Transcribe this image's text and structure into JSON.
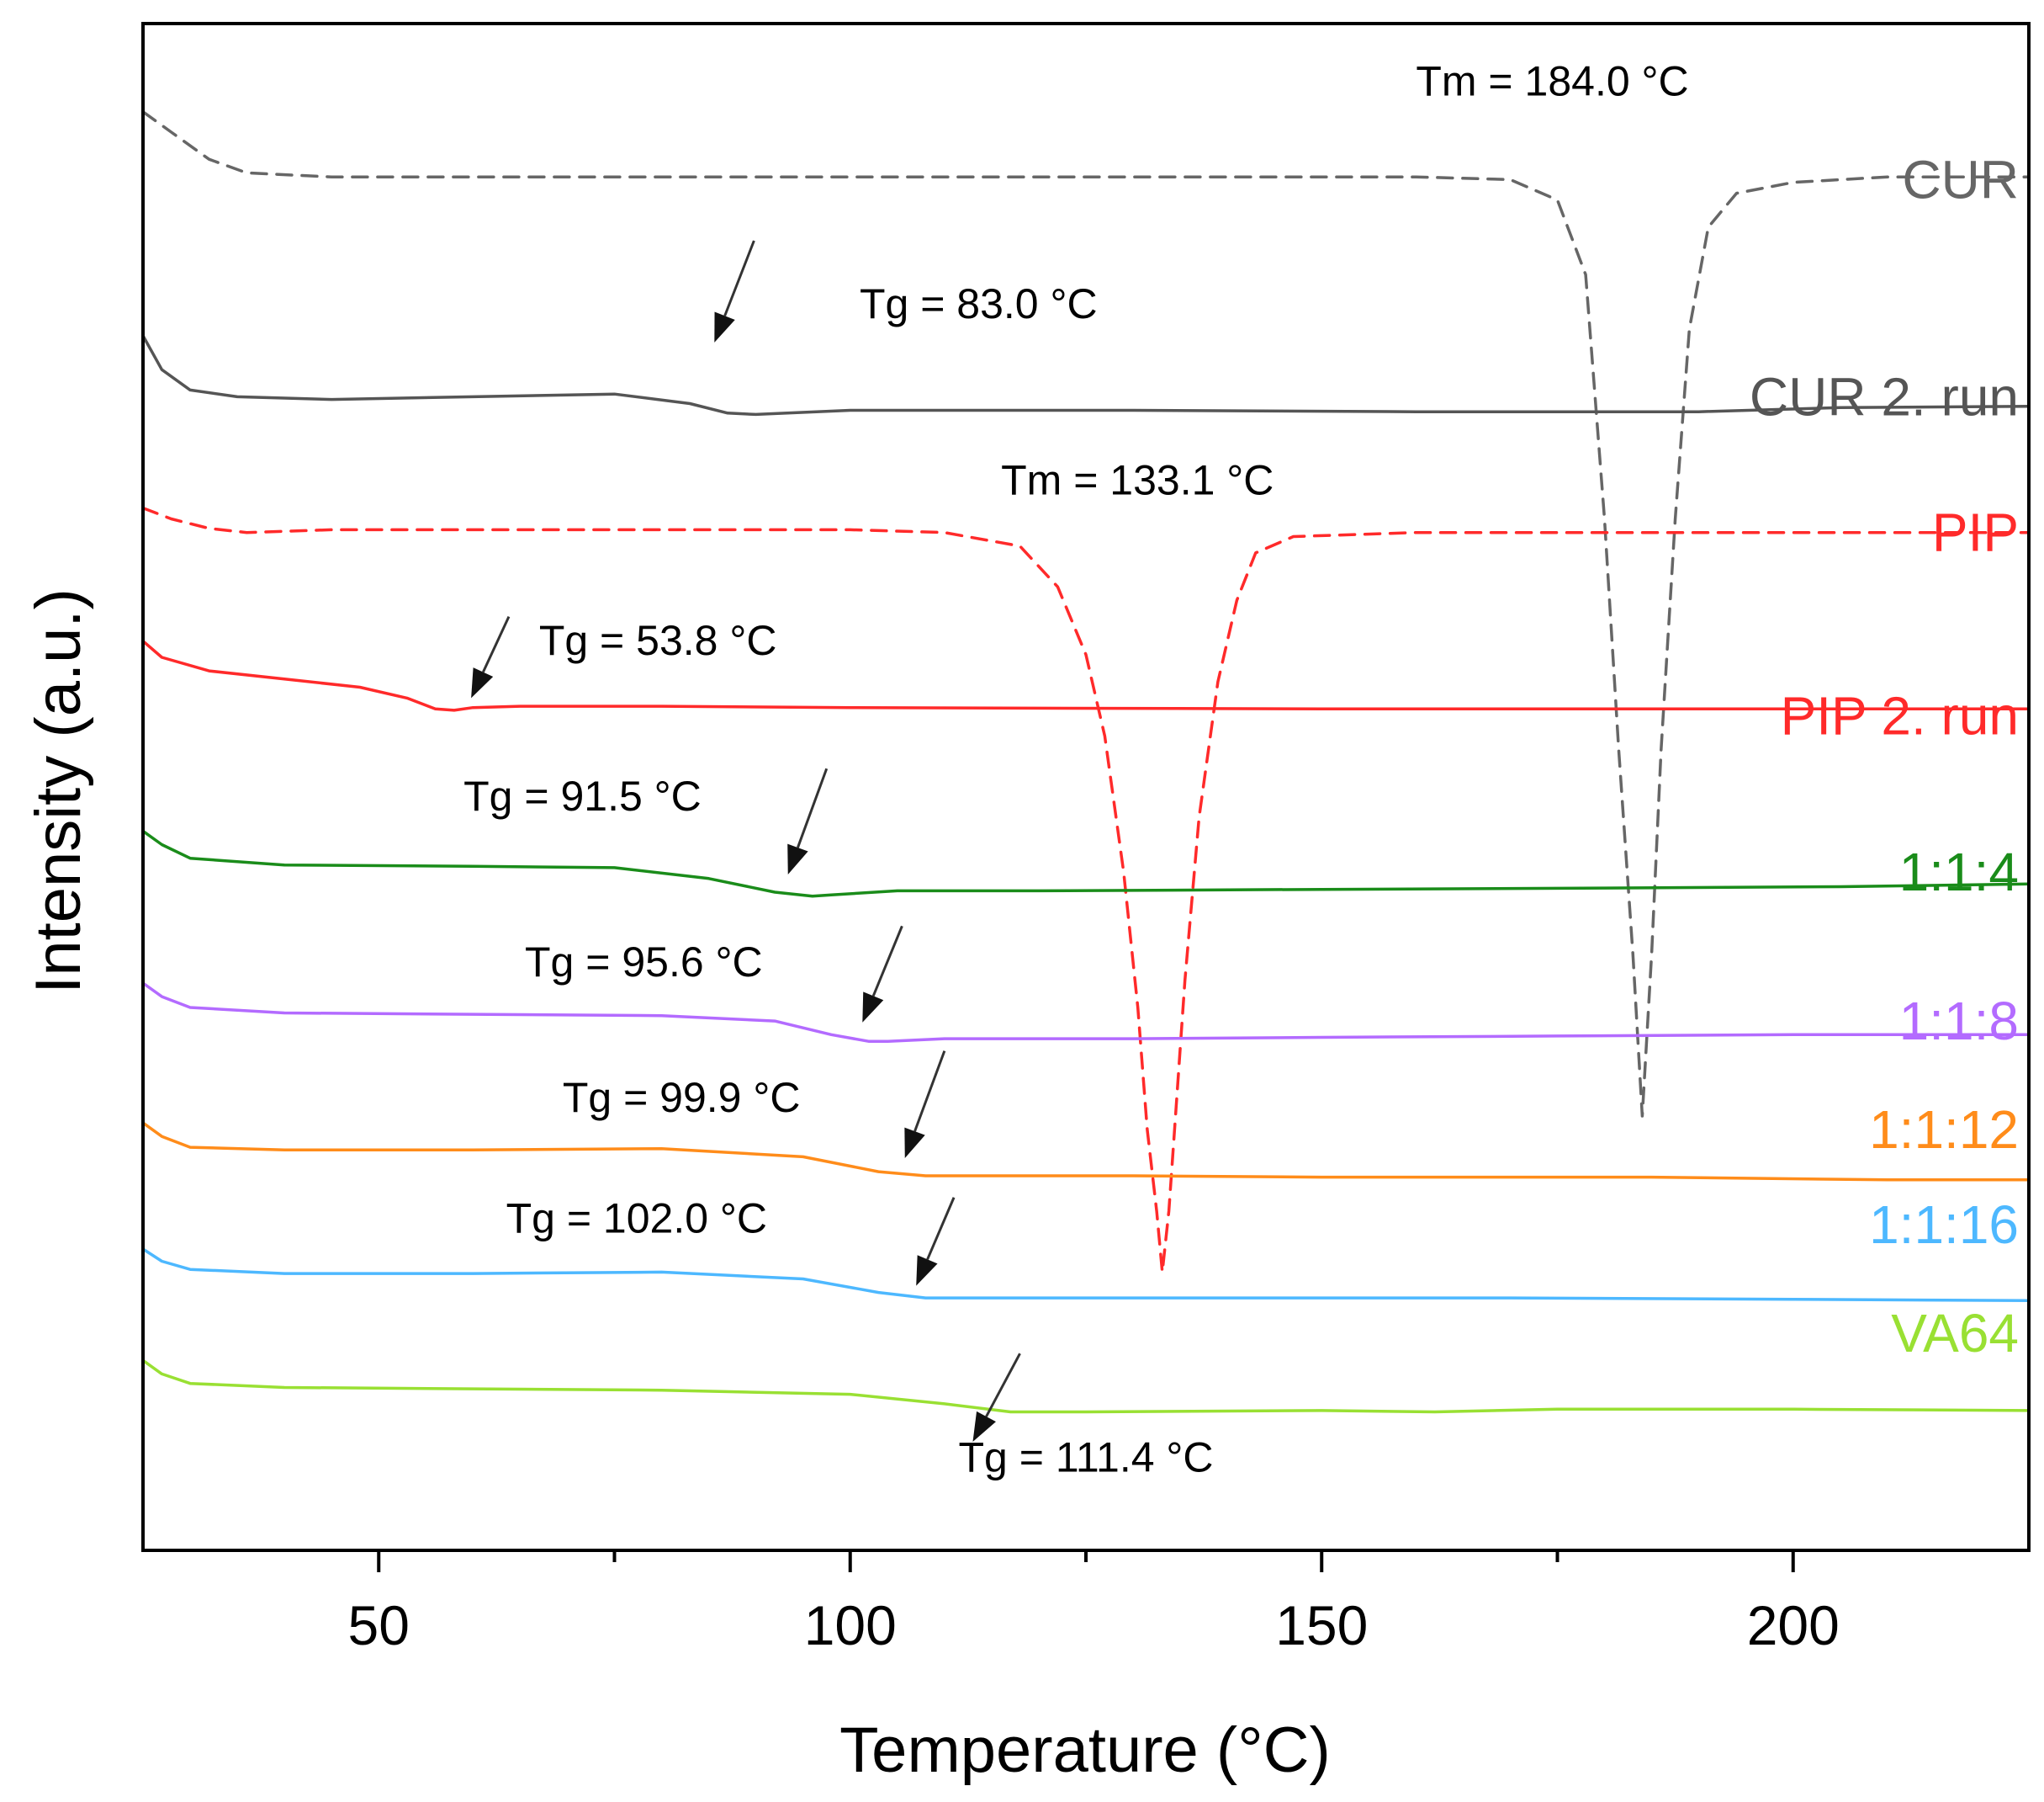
{
  "chart_data": {
    "type": "line",
    "xlabel": "Temperature (°C)",
    "ylabel": "Intensity (a.u.)",
    "xlim": [
      25,
      225
    ],
    "x_ticks": [
      50,
      100,
      150,
      200
    ],
    "x_tick_labels": [
      "50",
      "100",
      "150",
      "200"
    ],
    "x_minor_ticks": [
      75,
      125,
      175
    ],
    "yticks": "none",
    "series": [
      {
        "name": "CUR",
        "label": "CUR",
        "color": "#666666",
        "dashed": true,
        "offset": 8.7,
        "points": [
          [
            25,
            9.2
          ],
          [
            28,
            9.05
          ],
          [
            32,
            8.85
          ],
          [
            36,
            8.75
          ],
          [
            45,
            8.72
          ],
          [
            100,
            8.72
          ],
          [
            160,
            8.72
          ],
          [
            170,
            8.7
          ],
          [
            175,
            8.55
          ],
          [
            178,
            8.0
          ],
          [
            180,
            6.2
          ],
          [
            181.5,
            4.5
          ],
          [
            183,
            3.0
          ],
          [
            184,
            1.8
          ],
          [
            185,
            3.0
          ],
          [
            186,
            4.5
          ],
          [
            187.5,
            6.2
          ],
          [
            189,
            7.6
          ],
          [
            191,
            8.35
          ],
          [
            194,
            8.6
          ],
          [
            200,
            8.68
          ],
          [
            210,
            8.72
          ],
          [
            225,
            8.72
          ]
        ]
      },
      {
        "name": "CUR 2. run",
        "label": "CUR 2. run",
        "color": "#555555",
        "dashed": false,
        "offset": 7.1,
        "points": [
          [
            25,
            7.55
          ],
          [
            27,
            7.3
          ],
          [
            30,
            7.15
          ],
          [
            35,
            7.1
          ],
          [
            45,
            7.08
          ],
          [
            60,
            7.1
          ],
          [
            75,
            7.12
          ],
          [
            83,
            7.05
          ],
          [
            87,
            6.98
          ],
          [
            90,
            6.97
          ],
          [
            100,
            7.0
          ],
          [
            130,
            7.0
          ],
          [
            160,
            6.99
          ],
          [
            190,
            6.99
          ],
          [
            205,
            7.02
          ],
          [
            225,
            7.03
          ]
        ]
      },
      {
        "name": "PIP",
        "label": "PIP",
        "color": "#ff2a2a",
        "dashed": true,
        "offset": 6.1,
        "points": [
          [
            25,
            6.28
          ],
          [
            28,
            6.2
          ],
          [
            32,
            6.13
          ],
          [
            36,
            6.1
          ],
          [
            45,
            6.12
          ],
          [
            100,
            6.12
          ],
          [
            110,
            6.1
          ],
          [
            118,
            6.0
          ],
          [
            122,
            5.7
          ],
          [
            125,
            5.2
          ],
          [
            127,
            4.6
          ],
          [
            129,
            3.6
          ],
          [
            130.5,
            2.6
          ],
          [
            131.5,
            1.7
          ],
          [
            132.5,
            1.1
          ],
          [
            133.1,
            0.65
          ],
          [
            133.8,
            1.1
          ],
          [
            134.5,
            1.8
          ],
          [
            135.5,
            2.8
          ],
          [
            137,
            4.0
          ],
          [
            139,
            5.0
          ],
          [
            141,
            5.6
          ],
          [
            143,
            5.95
          ],
          [
            147,
            6.07
          ],
          [
            160,
            6.1
          ],
          [
            225,
            6.1
          ]
        ]
      },
      {
        "name": "PIP 2. run",
        "label": "PIP 2. run",
        "color": "#ff2a2a",
        "dashed": false,
        "offset": 4.75,
        "points": [
          [
            25,
            5.3
          ],
          [
            27,
            5.18
          ],
          [
            32,
            5.08
          ],
          [
            40,
            5.02
          ],
          [
            48,
            4.96
          ],
          [
            53,
            4.88
          ],
          [
            56,
            4.8
          ],
          [
            58,
            4.79
          ],
          [
            60,
            4.81
          ],
          [
            65,
            4.82
          ],
          [
            80,
            4.82
          ],
          [
            100,
            4.81
          ],
          [
            150,
            4.8
          ],
          [
            225,
            4.8
          ]
        ]
      },
      {
        "name": "1:1:4",
        "label": "1:1:4",
        "color": "#1a8c1a",
        "dashed": false,
        "offset": 3.6,
        "points": [
          [
            25,
            3.9
          ],
          [
            27,
            3.8
          ],
          [
            30,
            3.7
          ],
          [
            40,
            3.65
          ],
          [
            60,
            3.64
          ],
          [
            75,
            3.63
          ],
          [
            85,
            3.55
          ],
          [
            92,
            3.45
          ],
          [
            96,
            3.42
          ],
          [
            98,
            3.43
          ],
          [
            105,
            3.46
          ],
          [
            120,
            3.46
          ],
          [
            150,
            3.47
          ],
          [
            180,
            3.48
          ],
          [
            205,
            3.49
          ],
          [
            225,
            3.51
          ]
        ]
      },
      {
        "name": "1:1:8",
        "label": "1:1:8",
        "color": "#b36bff",
        "dashed": false,
        "offset": 2.5,
        "points": [
          [
            25,
            2.78
          ],
          [
            27,
            2.68
          ],
          [
            30,
            2.6
          ],
          [
            40,
            2.56
          ],
          [
            60,
            2.55
          ],
          [
            80,
            2.54
          ],
          [
            92,
            2.5
          ],
          [
            98,
            2.4
          ],
          [
            102,
            2.35
          ],
          [
            104,
            2.35
          ],
          [
            110,
            2.37
          ],
          [
            130,
            2.37
          ],
          [
            150,
            2.38
          ],
          [
            175,
            2.39
          ],
          [
            200,
            2.4
          ],
          [
            225,
            2.4
          ]
        ]
      },
      {
        "name": "1:1:12",
        "label": "1:1:12",
        "color": "#ff8c1a",
        "dashed": false,
        "offset": 1.7,
        "points": [
          [
            25,
            1.75
          ],
          [
            27,
            1.65
          ],
          [
            30,
            1.57
          ],
          [
            40,
            1.55
          ],
          [
            60,
            1.55
          ],
          [
            80,
            1.56
          ],
          [
            95,
            1.5
          ],
          [
            103,
            1.39
          ],
          [
            108,
            1.36
          ],
          [
            112,
            1.36
          ],
          [
            130,
            1.36
          ],
          [
            150,
            1.35
          ],
          [
            185,
            1.35
          ],
          [
            210,
            1.33
          ],
          [
            225,
            1.33
          ]
        ]
      },
      {
        "name": "1:1:16",
        "label": "1:1:16",
        "color": "#4db8ff",
        "dashed": false,
        "offset": 1.0,
        "points": [
          [
            25,
            0.82
          ],
          [
            27,
            0.73
          ],
          [
            30,
            0.67
          ],
          [
            40,
            0.64
          ],
          [
            60,
            0.64
          ],
          [
            80,
            0.65
          ],
          [
            95,
            0.6
          ],
          [
            103,
            0.5
          ],
          [
            108,
            0.46
          ],
          [
            112,
            0.46
          ],
          [
            140,
            0.46
          ],
          [
            170,
            0.46
          ],
          [
            200,
            0.45
          ],
          [
            225,
            0.44
          ]
        ]
      },
      {
        "name": "VA64",
        "label": "VA64",
        "color": "#99e033",
        "dashed": false,
        "offset": 0.2,
        "points": [
          [
            25,
            0.0
          ],
          [
            27,
            -0.1
          ],
          [
            30,
            -0.17
          ],
          [
            40,
            -0.2
          ],
          [
            60,
            -0.21
          ],
          [
            80,
            -0.22
          ],
          [
            100,
            -0.25
          ],
          [
            110,
            -0.32
          ],
          [
            117,
            -0.38
          ],
          [
            125,
            -0.38
          ],
          [
            150,
            -0.37
          ],
          [
            162,
            -0.38
          ],
          [
            175,
            -0.36
          ],
          [
            200,
            -0.36
          ],
          [
            225,
            -0.37
          ]
        ]
      }
    ],
    "ylim": [
      -1.4,
      9.85
    ],
    "annotations": [
      {
        "text": "Tm = 184.0 °C",
        "x": 160,
        "y": 9.32,
        "anchor": "start"
      },
      {
        "text": "Tg = 83.0 °C",
        "x": 101,
        "y": 7.68,
        "anchor": "start",
        "arrow_from": [
          89.8,
          8.25
        ],
        "arrow_to": [
          85.6,
          7.5
        ]
      },
      {
        "text": "Tm = 133.1 °C",
        "x": 116,
        "y": 6.38,
        "anchor": "start"
      },
      {
        "text": "Tg = 53.8 °C",
        "x": 67,
        "y": 5.2,
        "anchor": "start",
        "arrow_from": [
          63.8,
          5.48
        ],
        "arrow_to": [
          59.8,
          4.88
        ]
      },
      {
        "text": "Tg = 91.5 °C",
        "x": 59,
        "y": 4.05,
        "anchor": "start",
        "arrow_from": [
          97.5,
          4.36
        ],
        "arrow_to": [
          93.4,
          3.58
        ]
      },
      {
        "text": "Tg = 95.6 °C",
        "x": 65.5,
        "y": 2.83,
        "anchor": "start",
        "arrow_from": [
          105.5,
          3.2
        ],
        "arrow_to": [
          101.3,
          2.49
        ]
      },
      {
        "text": "Tg = 99.9 °C",
        "x": 69.5,
        "y": 1.83,
        "anchor": "start",
        "arrow_from": [
          110,
          2.28
        ],
        "arrow_to": [
          105.8,
          1.49
        ]
      },
      {
        "text": "Tg = 102.0 °C",
        "x": 63.5,
        "y": 0.94,
        "anchor": "start",
        "arrow_from": [
          111,
          1.2
        ],
        "arrow_to": [
          107,
          0.55
        ]
      },
      {
        "text": "Tg = 111.4 °C",
        "x": 125,
        "y": -0.82,
        "anchor": "middle",
        "arrow_from": [
          118,
          0.05
        ],
        "arrow_to": [
          113,
          -0.6
        ]
      }
    ]
  }
}
